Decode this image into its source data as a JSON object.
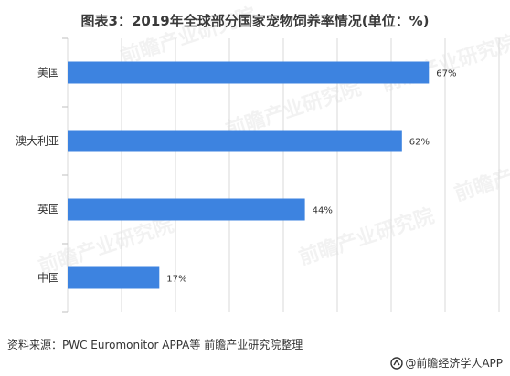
{
  "title": "图表3：2019年全球部分国家宠物饲养率情况(单位：%)",
  "source": "资料来源：PWC Euromonitor APPA等 前瞻产业研究院整理",
  "brand": "@前瞻经济学人APP",
  "watermark": "前瞻产业研究院",
  "colors": {
    "bar": "#3d83e0",
    "grid": "#d9d9d9",
    "axis": "#bfbfbf",
    "text": "#333333"
  },
  "chart_data": {
    "type": "bar",
    "orientation": "horizontal",
    "categories": [
      "美国",
      "澳大利亚",
      "英国",
      "中国"
    ],
    "values": [
      67,
      62,
      44,
      17
    ],
    "data_labels": [
      "67%",
      "62%",
      "44%",
      "17%"
    ],
    "unit": "%",
    "xlim": [
      0,
      80
    ],
    "grid": true,
    "title": "图表3：2019年全球部分国家宠物饲养率情况(单位：%)"
  }
}
